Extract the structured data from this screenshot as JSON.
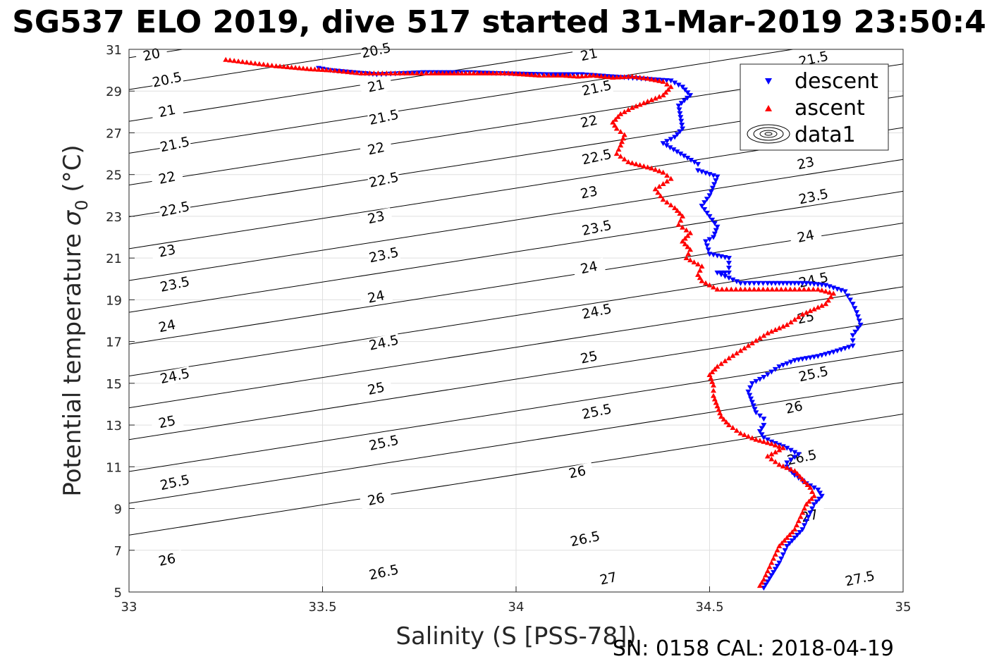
{
  "chart_data": {
    "type": "scatter",
    "title": "SG537 ELO 2019, dive 517 started 31-Mar-2019 23:50:4",
    "xlabel": "Salinity (S [PSS-78])",
    "ylabel_main": "Potential temperature ",
    "ylabel_sigma": "σ",
    "ylabel_sub": "0",
    "ylabel_unit": " (°C)",
    "footer": "SN: 0158  CAL: 2018-04-19",
    "xlim": [
      33,
      35
    ],
    "ylim": [
      5,
      31
    ],
    "x_ticks": [
      "33",
      "33.5",
      "34",
      "34.5",
      "35"
    ],
    "y_ticks": [
      "5",
      "7",
      "9",
      "11",
      "13",
      "15",
      "17",
      "19",
      "21",
      "23",
      "25",
      "27",
      "29",
      "31"
    ],
    "grid": true,
    "legend_position": "top-right",
    "legend": [
      {
        "label": "descent",
        "marker": "triangle-down",
        "color": "#0000ff"
      },
      {
        "label": "ascent",
        "marker": "triangle-up",
        "color": "#ff0000"
      },
      {
        "label": "data1",
        "marker": "contour",
        "color": "#000000"
      }
    ],
    "contour_levels": [
      "20",
      "20.5",
      "21",
      "21.5",
      "22",
      "22.5",
      "23",
      "23.5",
      "24",
      "24.5",
      "25",
      "25.5",
      "26",
      "26.5",
      "27",
      "27.5"
    ],
    "contour_labels": [
      {
        "text": "20",
        "s": 33.06,
        "t": 30.6
      },
      {
        "text": "20.5",
        "s": 33.1,
        "t": 29.4
      },
      {
        "text": "21",
        "s": 33.1,
        "t": 27.9
      },
      {
        "text": "21.5",
        "s": 33.12,
        "t": 26.3
      },
      {
        "text": "22",
        "s": 33.1,
        "t": 24.7
      },
      {
        "text": "22.5",
        "s": 33.12,
        "t": 23.2
      },
      {
        "text": "23",
        "s": 33.1,
        "t": 21.2
      },
      {
        "text": "23.5",
        "s": 33.12,
        "t": 19.6
      },
      {
        "text": "24",
        "s": 33.1,
        "t": 17.6
      },
      {
        "text": "24.5",
        "s": 33.12,
        "t": 15.2
      },
      {
        "text": "25",
        "s": 33.1,
        "t": 13.0
      },
      {
        "text": "25.5",
        "s": 33.12,
        "t": 10.1
      },
      {
        "text": "26",
        "s": 33.1,
        "t": 6.4
      },
      {
        "text": "20.5",
        "s": 33.64,
        "t": 30.8
      },
      {
        "text": "21",
        "s": 33.64,
        "t": 29.1
      },
      {
        "text": "21.5",
        "s": 33.66,
        "t": 27.6
      },
      {
        "text": "22",
        "s": 33.64,
        "t": 26.1
      },
      {
        "text": "22.5",
        "s": 33.66,
        "t": 24.6
      },
      {
        "text": "23",
        "s": 33.64,
        "t": 22.8
      },
      {
        "text": "23.5",
        "s": 33.66,
        "t": 21.0
      },
      {
        "text": "24",
        "s": 33.64,
        "t": 19.0
      },
      {
        "text": "24.5",
        "s": 33.66,
        "t": 16.8
      },
      {
        "text": "25",
        "s": 33.64,
        "t": 14.6
      },
      {
        "text": "25.5",
        "s": 33.66,
        "t": 12.0
      },
      {
        "text": "26",
        "s": 33.64,
        "t": 9.3
      },
      {
        "text": "26.5",
        "s": 33.66,
        "t": 5.8
      },
      {
        "text": "21",
        "s": 34.19,
        "t": 30.6
      },
      {
        "text": "21.5",
        "s": 34.21,
        "t": 29.0
      },
      {
        "text": "22",
        "s": 34.19,
        "t": 27.4
      },
      {
        "text": "22.5",
        "s": 34.21,
        "t": 25.7
      },
      {
        "text": "23",
        "s": 34.19,
        "t": 24.0
      },
      {
        "text": "23.5",
        "s": 34.21,
        "t": 22.3
      },
      {
        "text": "24",
        "s": 34.19,
        "t": 20.4
      },
      {
        "text": "24.5",
        "s": 34.21,
        "t": 18.3
      },
      {
        "text": "25",
        "s": 34.19,
        "t": 16.1
      },
      {
        "text": "25.5",
        "s": 34.21,
        "t": 13.5
      },
      {
        "text": "26",
        "s": 34.16,
        "t": 10.6
      },
      {
        "text": "26.5",
        "s": 34.18,
        "t": 7.4
      },
      {
        "text": "27",
        "s": 34.24,
        "t": 5.5
      },
      {
        "text": "21.5",
        "s": 34.77,
        "t": 30.4
      },
      {
        "text": "23",
        "s": 34.75,
        "t": 25.4
      },
      {
        "text": "23.5",
        "s": 34.77,
        "t": 23.8
      },
      {
        "text": "24",
        "s": 34.75,
        "t": 21.9
      },
      {
        "text": "24.5",
        "s": 34.77,
        "t": 19.8
      },
      {
        "text": "25",
        "s": 34.75,
        "t": 18.0
      },
      {
        "text": "25.5",
        "s": 34.77,
        "t": 15.3
      },
      {
        "text": "26",
        "s": 34.72,
        "t": 13.7
      },
      {
        "text": "26.5",
        "s": 34.74,
        "t": 11.3
      },
      {
        "text": "27",
        "s": 34.76,
        "t": 8.5
      },
      {
        "text": "27.5",
        "s": 34.89,
        "t": 5.5
      }
    ],
    "series": [
      {
        "name": "descent",
        "points": [
          [
            33.49,
            30.1
          ],
          [
            33.52,
            30.0
          ],
          [
            33.55,
            29.95
          ],
          [
            33.58,
            29.9
          ],
          [
            33.61,
            29.85
          ],
          [
            33.64,
            29.8
          ],
          [
            33.7,
            29.85
          ],
          [
            33.76,
            29.9
          ],
          [
            33.88,
            29.9
          ],
          [
            33.96,
            29.85
          ],
          [
            34.08,
            29.8
          ],
          [
            34.17,
            29.8
          ],
          [
            34.4,
            29.5
          ],
          [
            34.43,
            29.2
          ],
          [
            34.45,
            28.8
          ],
          [
            34.42,
            28.3
          ],
          [
            34.43,
            27.2
          ],
          [
            34.41,
            26.8
          ],
          [
            34.38,
            26.5
          ],
          [
            34.47,
            25.5
          ],
          [
            34.47,
            25.2
          ],
          [
            34.52,
            24.9
          ],
          [
            34.5,
            24.0
          ],
          [
            34.48,
            23.5
          ],
          [
            34.5,
            23.0
          ],
          [
            34.52,
            22.5
          ],
          [
            34.51,
            22.0
          ],
          [
            34.49,
            21.8
          ],
          [
            34.5,
            21.2
          ],
          [
            34.55,
            21.0
          ],
          [
            34.55,
            20.3
          ],
          [
            34.52,
            20.3
          ],
          [
            34.58,
            19.8
          ],
          [
            34.65,
            19.8
          ],
          [
            34.7,
            19.8
          ],
          [
            34.75,
            19.8
          ],
          [
            34.8,
            19.7
          ],
          [
            34.85,
            19.4
          ],
          [
            34.87,
            18.8
          ],
          [
            34.88,
            18.4
          ],
          [
            34.89,
            17.8
          ],
          [
            34.87,
            17.3
          ],
          [
            34.87,
            16.8
          ],
          [
            34.82,
            16.5
          ],
          [
            34.78,
            16.3
          ],
          [
            34.72,
            16.1
          ],
          [
            34.68,
            15.8
          ],
          [
            34.64,
            15.3
          ],
          [
            34.61,
            15.0
          ],
          [
            34.6,
            14.6
          ],
          [
            34.61,
            14.1
          ],
          [
            34.62,
            13.6
          ],
          [
            34.64,
            13.3
          ],
          [
            34.64,
            13.0
          ],
          [
            34.63,
            12.7
          ],
          [
            34.64,
            12.4
          ],
          [
            34.66,
            12.2
          ],
          [
            34.7,
            11.9
          ],
          [
            34.73,
            11.6
          ],
          [
            34.7,
            11.2
          ],
          [
            34.7,
            11.0
          ],
          [
            34.72,
            10.6
          ],
          [
            34.75,
            10.2
          ],
          [
            34.78,
            9.9
          ],
          [
            34.79,
            9.6
          ],
          [
            34.77,
            9.2
          ],
          [
            34.76,
            8.8
          ],
          [
            34.75,
            8.4
          ],
          [
            34.74,
            8.0
          ],
          [
            34.72,
            7.6
          ],
          [
            34.7,
            7.2
          ],
          [
            34.69,
            6.8
          ],
          [
            34.68,
            6.4
          ],
          [
            34.67,
            6.1
          ],
          [
            34.66,
            5.8
          ],
          [
            34.65,
            5.5
          ],
          [
            34.64,
            5.2
          ]
        ]
      },
      {
        "name": "ascent",
        "points": [
          [
            33.25,
            30.5
          ],
          [
            33.38,
            30.2
          ],
          [
            33.44,
            30.1
          ],
          [
            33.47,
            30.05
          ],
          [
            33.52,
            30.0
          ],
          [
            33.6,
            29.85
          ],
          [
            33.72,
            29.85
          ],
          [
            33.78,
            29.85
          ],
          [
            33.82,
            29.85
          ],
          [
            33.86,
            29.85
          ],
          [
            33.9,
            29.85
          ],
          [
            33.94,
            29.85
          ],
          [
            33.98,
            29.85
          ],
          [
            34.02,
            29.8
          ],
          [
            34.06,
            29.75
          ],
          [
            34.12,
            29.75
          ],
          [
            34.16,
            29.7
          ],
          [
            34.2,
            29.75
          ],
          [
            34.25,
            29.65
          ],
          [
            34.3,
            29.7
          ],
          [
            34.34,
            29.6
          ],
          [
            34.38,
            29.45
          ],
          [
            34.4,
            29.2
          ],
          [
            34.38,
            28.8
          ],
          [
            34.34,
            28.5
          ],
          [
            34.3,
            28.2
          ],
          [
            34.27,
            27.9
          ],
          [
            34.25,
            27.5
          ],
          [
            34.26,
            27.2
          ],
          [
            34.28,
            26.9
          ],
          [
            34.27,
            26.4
          ],
          [
            34.26,
            26.0
          ],
          [
            34.29,
            25.6
          ],
          [
            34.35,
            25.3
          ],
          [
            34.38,
            25.1
          ],
          [
            34.4,
            24.8
          ],
          [
            34.36,
            24.3
          ],
          [
            34.38,
            23.8
          ],
          [
            34.41,
            23.4
          ],
          [
            34.43,
            23.0
          ],
          [
            34.42,
            22.6
          ],
          [
            34.45,
            22.2
          ],
          [
            34.43,
            21.8
          ],
          [
            34.45,
            21.4
          ],
          [
            34.44,
            21.0
          ],
          [
            34.48,
            20.6
          ],
          [
            34.47,
            20.2
          ],
          [
            34.48,
            19.9
          ],
          [
            34.5,
            19.7
          ],
          [
            34.52,
            19.5
          ],
          [
            34.58,
            19.5
          ],
          [
            34.65,
            19.5
          ],
          [
            34.72,
            19.5
          ],
          [
            34.78,
            19.5
          ],
          [
            34.82,
            19.3
          ],
          [
            34.8,
            18.8
          ],
          [
            34.74,
            18.3
          ],
          [
            34.7,
            17.8
          ],
          [
            34.65,
            17.4
          ],
          [
            34.6,
            16.8
          ],
          [
            34.55,
            16.2
          ],
          [
            34.52,
            15.8
          ],
          [
            34.5,
            15.4
          ],
          [
            34.51,
            14.9
          ],
          [
            34.51,
            14.4
          ],
          [
            34.52,
            13.9
          ],
          [
            34.53,
            13.4
          ],
          [
            34.55,
            13.0
          ],
          [
            34.58,
            12.6
          ],
          [
            34.62,
            12.3
          ],
          [
            34.66,
            12.1
          ],
          [
            34.69,
            11.9
          ],
          [
            34.65,
            11.5
          ],
          [
            34.68,
            11.1
          ],
          [
            34.72,
            10.8
          ],
          [
            34.74,
            10.4
          ],
          [
            34.76,
            10.0
          ],
          [
            34.77,
            9.6
          ],
          [
            34.75,
            9.2
          ],
          [
            34.74,
            8.8
          ],
          [
            34.73,
            8.4
          ],
          [
            34.72,
            8.0
          ],
          [
            34.7,
            7.6
          ],
          [
            34.68,
            7.2
          ],
          [
            34.67,
            6.8
          ],
          [
            34.66,
            6.4
          ],
          [
            34.65,
            6.0
          ],
          [
            34.64,
            5.6
          ],
          [
            34.63,
            5.3
          ]
        ]
      }
    ]
  }
}
